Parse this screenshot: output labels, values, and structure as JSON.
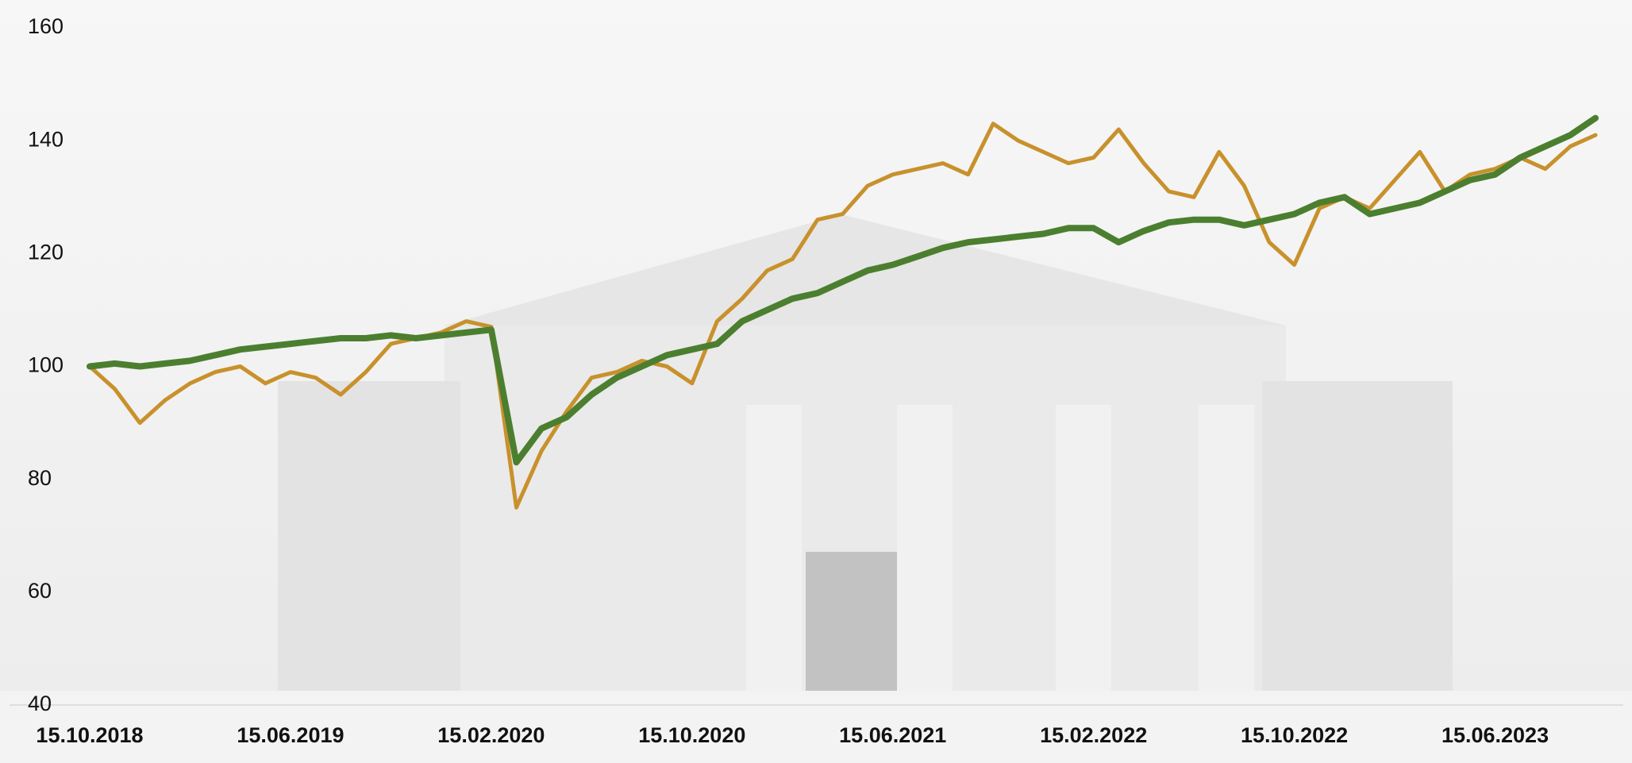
{
  "chart_data": {
    "type": "line",
    "x": [
      "15.10.2018",
      "15.11.2018",
      "15.12.2018",
      "15.01.2019",
      "15.02.2019",
      "15.03.2019",
      "15.04.2019",
      "15.05.2019",
      "15.06.2019",
      "15.07.2019",
      "15.08.2019",
      "15.09.2019",
      "15.10.2019",
      "15.11.2019",
      "15.12.2019",
      "15.01.2020",
      "15.02.2020",
      "15.03.2020",
      "15.04.2020",
      "15.05.2020",
      "15.06.2020",
      "15.07.2020",
      "15.08.2020",
      "15.09.2020",
      "15.10.2020",
      "15.11.2020",
      "15.12.2020",
      "15.01.2021",
      "15.02.2021",
      "15.03.2021",
      "15.04.2021",
      "15.05.2021",
      "15.06.2021",
      "15.07.2021",
      "15.08.2021",
      "15.09.2021",
      "15.10.2021",
      "15.11.2021",
      "15.12.2021",
      "15.01.2022",
      "15.02.2022",
      "15.03.2022",
      "15.04.2022",
      "15.05.2022",
      "15.06.2022",
      "15.07.2022",
      "15.08.2022",
      "15.09.2022",
      "15.10.2022",
      "15.11.2022",
      "15.12.2022",
      "15.01.2023",
      "15.02.2023",
      "15.03.2023",
      "15.04.2023",
      "15.05.2023",
      "15.06.2023",
      "15.07.2023",
      "15.08.2023",
      "15.09.2023",
      "15.10.2023"
    ],
    "series": [
      {
        "color": "#c8912c",
        "values": [
          100,
          96,
          90,
          94,
          97,
          99,
          100,
          97,
          99,
          98,
          95,
          99,
          104,
          105,
          106,
          108,
          107,
          75,
          85,
          92,
          98,
          99,
          101,
          100,
          97,
          108,
          112,
          117,
          119,
          126,
          127,
          132,
          134,
          135,
          136,
          134,
          143,
          140,
          138,
          136,
          137,
          142,
          136,
          131,
          130,
          138,
          132,
          122,
          118,
          128,
          130,
          128,
          133,
          138,
          131,
          134,
          135,
          137,
          135,
          139,
          141
        ]
      },
      {
        "color": "#4b7f2f",
        "values": [
          100,
          100.5,
          100,
          100.5,
          101,
          102,
          103,
          103.5,
          104,
          104.5,
          105,
          105,
          105.5,
          105,
          105.5,
          106,
          106.5,
          83,
          89,
          91,
          95,
          98,
          100,
          102,
          103,
          104,
          108,
          110,
          112,
          113,
          115,
          117,
          118,
          119.5,
          121,
          122,
          122.5,
          123,
          123.5,
          124.5,
          124.5,
          122,
          124,
          125.5,
          126,
          126,
          125,
          126,
          127,
          129,
          130,
          127,
          128,
          129,
          131,
          133,
          134,
          137,
          139,
          141,
          144
        ]
      }
    ],
    "xlim": [
      "15.10.2018",
      "15.10.2023"
    ],
    "xticks": [
      "15.10.2018",
      "15.06.2019",
      "15.02.2020",
      "15.10.2020",
      "15.06.2021",
      "15.02.2022",
      "15.10.2022",
      "15.06.2023"
    ],
    "ylim": [
      40,
      160
    ],
    "yticks": [
      40,
      60,
      80,
      100,
      120,
      140,
      160
    ]
  }
}
